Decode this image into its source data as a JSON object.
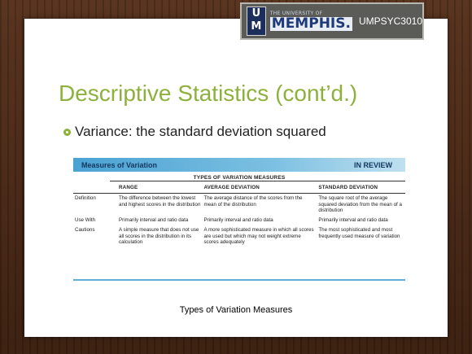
{
  "header": {
    "logo_u": "U",
    "logo_m": "M",
    "logo_small": "THE UNIVERSITY OF",
    "logo_big": "MEMPHIS.",
    "course": "UMPSYC3010"
  },
  "slide": {
    "title": "Descriptive Statistics (cont’d.)",
    "bullet": "Variance: the standard deviation squared"
  },
  "review_box": {
    "header_left": "Measures of Variation",
    "header_right": "IN REVIEW",
    "subheader": "TYPES OF VARIATION MEASURES",
    "columns": [
      "",
      "RANGE",
      "AVERAGE DEVIATION",
      "STANDARD DEVIATION"
    ],
    "rows": [
      {
        "label": "Definition",
        "cells": [
          "The difference between the lowest and highest scores in the distribution",
          "The average distance of the scores from the mean of the distribution",
          "The square root of the average squared deviation from the mean of a distribution"
        ]
      },
      {
        "label": "Use With",
        "cells": [
          "Primarily interval and ratio data",
          "Primarily interval and ratio data",
          "Primarily interval and ratio data"
        ]
      },
      {
        "label": "Cautions",
        "cells": [
          "A simple measure that does not use all scores in the distribution in its calculation",
          "A more sophisticated measure in which all scores are used but which may not weight extreme scores adequately",
          "The most sophisticated and most frequently used measure of variation"
        ]
      }
    ]
  },
  "caption": "Types of Variation Measures"
}
